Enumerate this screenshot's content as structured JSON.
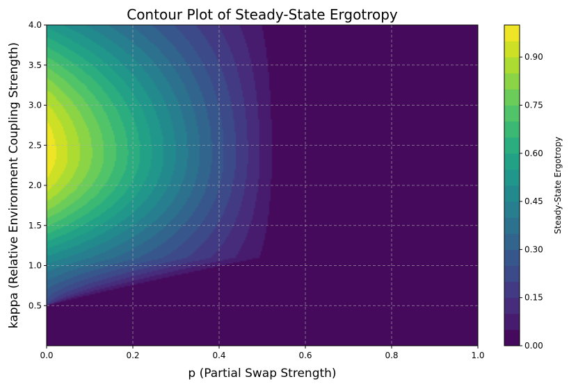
{
  "chart_data": {
    "type": "heatmap",
    "subtype": "filled-contour",
    "title": "Contour Plot of Steady-State Ergotropy",
    "xlabel": "p (Partial Swap Strength)",
    "ylabel": "kappa (Relative Environment Coupling Strength)",
    "xlim": [
      0.0,
      1.0
    ],
    "ylim": [
      0.0,
      4.0
    ],
    "xticks": [
      0.0,
      0.2,
      0.4,
      0.6,
      0.8,
      1.0
    ],
    "xtick_labels": [
      "0.0",
      "0.2",
      "0.4",
      "0.6",
      "0.8",
      "1.0"
    ],
    "yticks": [
      0.5,
      1.0,
      1.5,
      2.0,
      2.5,
      3.0,
      3.5,
      4.0
    ],
    "ytick_labels": [
      "0.5",
      "1.0",
      "1.5",
      "2.0",
      "2.5",
      "3.0",
      "3.5",
      "4.0"
    ],
    "grid": true,
    "colormap": "viridis",
    "colorbar": {
      "label": "Steady-State Ergotropy",
      "range": [
        0.0,
        1.0
      ],
      "levels": [
        0.0,
        0.05,
        0.1,
        0.15,
        0.2,
        0.25,
        0.3,
        0.35,
        0.4,
        0.45,
        0.5,
        0.55,
        0.6,
        0.65,
        0.7,
        0.75,
        0.8,
        0.85,
        0.9,
        0.95,
        1.0
      ],
      "ticks": [
        0.0,
        0.15,
        0.3,
        0.45,
        0.6,
        0.75,
        0.9
      ],
      "tick_labels": [
        "0.00",
        "0.15",
        "0.30",
        "0.45",
        "0.60",
        "0.75",
        "0.90"
      ]
    },
    "field": {
      "peak_value": 0.99,
      "peak_location": {
        "p": 0.0,
        "kappa": 2.4
      },
      "zero_region": "kappa below about 0.5 and p above about 0.55",
      "max_extent_p": 0.55
    }
  }
}
